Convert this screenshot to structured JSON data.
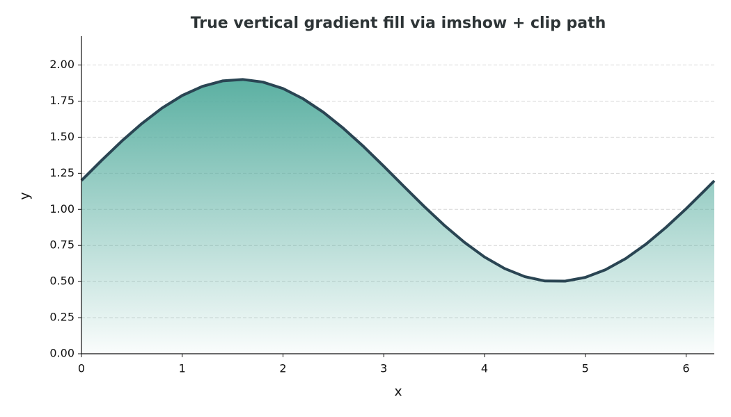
{
  "chart_data": {
    "type": "line",
    "title": "True vertical gradient fill via imshow + clip path",
    "x_label": "x",
    "y_label": "y",
    "x": [
      0,
      0.2,
      0.4,
      0.6,
      0.8,
      1.0,
      1.2,
      1.4,
      1.6,
      1.8,
      2.0,
      2.2,
      2.4,
      2.6,
      2.8,
      3.0,
      3.2,
      3.4,
      3.6,
      3.8,
      4.0,
      4.2,
      4.4,
      4.6,
      4.8,
      5.0,
      5.2,
      5.4,
      5.6,
      5.8,
      6.0,
      6.2,
      6.28
    ],
    "series": [
      {
        "color": "#2a4553",
        "fill_color": "#5bb0a2",
        "values": [
          1.2,
          1.339,
          1.473,
          1.595,
          1.702,
          1.789,
          1.852,
          1.89,
          1.9,
          1.882,
          1.837,
          1.766,
          1.673,
          1.561,
          1.435,
          1.299,
          1.159,
          1.021,
          0.89,
          0.772,
          0.67,
          0.59,
          0.534,
          0.504,
          0.503,
          0.529,
          0.582,
          0.659,
          0.758,
          0.875,
          1.004,
          1.142,
          1.198
        ]
      }
    ],
    "xlim": [
      0,
      6.28
    ],
    "ylim": [
      0,
      2.2
    ],
    "xticks": [
      0,
      1,
      2,
      3,
      4,
      5,
      6
    ],
    "yticks": [
      {
        "value": 0,
        "label": "0.00"
      },
      {
        "value": 0.25,
        "label": "0.25"
      },
      {
        "value": 0.5,
        "label": "0.50"
      },
      {
        "value": 0.75,
        "label": "0.75"
      },
      {
        "value": 1,
        "label": "1.00"
      },
      {
        "value": 1.25,
        "label": "1.25"
      },
      {
        "value": 1.5,
        "label": "1.50"
      },
      {
        "value": 1.75,
        "label": "1.75"
      },
      {
        "value": 2,
        "label": "2.00"
      }
    ],
    "grid": true
  }
}
